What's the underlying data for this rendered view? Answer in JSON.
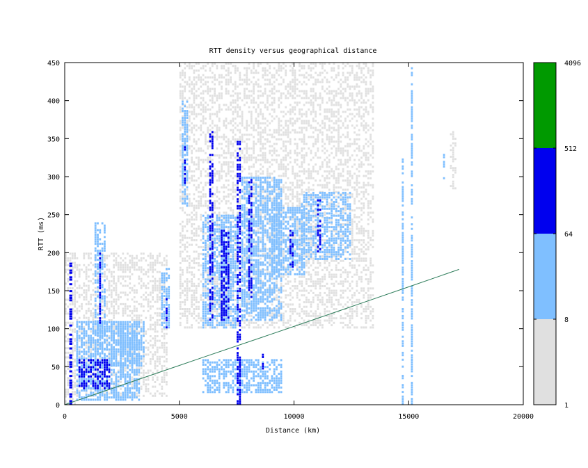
{
  "chart_data": {
    "type": "heatmap",
    "title": "RTT density versus geographical distance",
    "xlabel": "Distance (km)",
    "ylabel": "RTT (ms)",
    "xlim": [
      0,
      20000
    ],
    "ylim": [
      0,
      450
    ],
    "x_ticks": [
      "0",
      "5000",
      "10000",
      "15000",
      "20000"
    ],
    "y_ticks": [
      "0",
      "50",
      "100",
      "150",
      "200",
      "250",
      "300",
      "350",
      "400",
      "450"
    ],
    "colorbar": {
      "scale": "log",
      "bins": [
        {
          "from": 1,
          "to": 8,
          "color": "#e0e0e0"
        },
        {
          "from": 8,
          "to": 64,
          "color": "#7fbfff"
        },
        {
          "from": 64,
          "to": 512,
          "color": "#0000ee"
        },
        {
          "from": 512,
          "to": 4096,
          "color": "#009a00"
        }
      ],
      "tick_labels": [
        "1",
        "8",
        "64",
        "512",
        "4096"
      ]
    },
    "reference_line": {
      "color": "#2e7d5b",
      "points": [
        [
          0,
          0
        ],
        [
          6000,
          62
        ],
        [
          10000,
          103
        ],
        [
          15000,
          155
        ],
        [
          17200,
          178
        ]
      ]
    },
    "density_regions": [
      {
        "x": [
          0,
          500
        ],
        "y": [
          0,
          200
        ],
        "level": 1
      },
      {
        "x": [
          200,
          350
        ],
        "y": [
          0,
          190
        ],
        "level": 3
      },
      {
        "x": [
          600,
          2000
        ],
        "y": [
          20,
          60
        ],
        "level": 3
      },
      {
        "x": [
          500,
          3300
        ],
        "y": [
          5,
          110
        ],
        "level": 2
      },
      {
        "x": [
          1300,
          1800
        ],
        "y": [
          60,
          240
        ],
        "level": 2
      },
      {
        "x": [
          1500,
          1600
        ],
        "y": [
          100,
          200
        ],
        "level": 3
      },
      {
        "x": [
          2000,
          3500
        ],
        "y": [
          50,
          110
        ],
        "level": 2
      },
      {
        "x": [
          300,
          4500
        ],
        "y": [
          10,
          200
        ],
        "level": 1
      },
      {
        "x": [
          4200,
          4600
        ],
        "y": [
          100,
          180
        ],
        "level": 2
      },
      {
        "x": [
          4400,
          4500
        ],
        "y": [
          100,
          140
        ],
        "level": 3
      },
      {
        "x": [
          5100,
          5400
        ],
        "y": [
          260,
          400
        ],
        "level": 2
      },
      {
        "x": [
          5200,
          5300
        ],
        "y": [
          290,
          340
        ],
        "level": 3
      },
      {
        "x": [
          6000,
          7600
        ],
        "y": [
          100,
          250
        ],
        "level": 2
      },
      {
        "x": [
          6300,
          6500
        ],
        "y": [
          110,
          360
        ],
        "level": 3
      },
      {
        "x": [
          6800,
          7200
        ],
        "y": [
          110,
          230
        ],
        "level": 3
      },
      {
        "x": [
          7500,
          7700
        ],
        "y": [
          0,
          350
        ],
        "level": 3
      },
      {
        "x": [
          7700,
          9500
        ],
        "y": [
          110,
          300
        ],
        "level": 2
      },
      {
        "x": [
          8000,
          8200
        ],
        "y": [
          140,
          300
        ],
        "level": 3
      },
      {
        "x": [
          9000,
          10500
        ],
        "y": [
          170,
          260
        ],
        "level": 2
      },
      {
        "x": [
          9800,
          10000
        ],
        "y": [
          180,
          230
        ],
        "level": 3
      },
      {
        "x": [
          10300,
          12500
        ],
        "y": [
          190,
          280
        ],
        "level": 2
      },
      {
        "x": [
          11000,
          11200
        ],
        "y": [
          200,
          270
        ],
        "level": 3
      },
      {
        "x": [
          6000,
          9500
        ],
        "y": [
          15,
          60
        ],
        "level": 2
      },
      {
        "x": [
          7600,
          7700
        ],
        "y": [
          0,
          60
        ],
        "level": 3
      },
      {
        "x": [
          8600,
          8700
        ],
        "y": [
          25,
          70
        ],
        "level": 3
      },
      {
        "x": [
          5000,
          13500
        ],
        "y": [
          100,
          450
        ],
        "level": 1
      },
      {
        "x": [
          14700,
          14800
        ],
        "y": [
          0,
          330
        ],
        "level": 2
      },
      {
        "x": [
          15100,
          15200
        ],
        "y": [
          0,
          450
        ],
        "level": 2
      },
      {
        "x": [
          16500,
          16600
        ],
        "y": [
          290,
          330
        ],
        "level": 2
      },
      {
        "x": [
          16800,
          17100
        ],
        "y": [
          280,
          360
        ],
        "level": 1
      }
    ]
  }
}
